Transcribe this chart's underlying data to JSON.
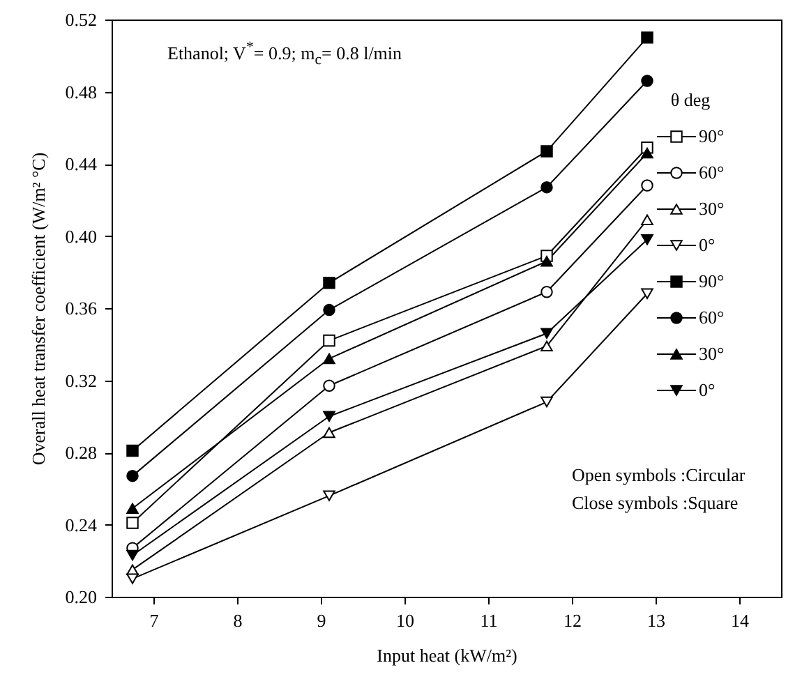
{
  "chart_data": {
    "type": "line",
    "xlabel": "Input heat (kW/m²)",
    "ylabel": "Overall heat transfer coefficient (W/m² °C)",
    "legend_title": "θ  deg",
    "annotations": [
      "Ethanol; V$^{*}$= 0.9; m$_{c}$= 0.8 l/min",
      "Open symbols  :Circular",
      "Close symbols :Square"
    ],
    "x": [
      6.75,
      9.1,
      11.7,
      12.9
    ],
    "series": [
      {
        "name": "90°",
        "color": "#000000",
        "marker": "square-open",
        "values": [
          0.241,
          0.342,
          0.389,
          0.449
        ]
      },
      {
        "name": "60°",
        "color": "#000000",
        "marker": "circle-open",
        "values": [
          0.227,
          0.317,
          0.369,
          0.428
        ]
      },
      {
        "name": "30°",
        "color": "#000000",
        "marker": "triangle-open",
        "values": [
          0.215,
          0.291,
          0.339,
          0.409
        ]
      },
      {
        "name": "0°",
        "color": "#000000",
        "marker": "triangle-down-open",
        "values": [
          0.21,
          0.256,
          0.308,
          0.368
        ]
      },
      {
        "name": "90°",
        "color": "#000000",
        "marker": "square",
        "values": [
          0.281,
          0.374,
          0.447,
          0.51
        ]
      },
      {
        "name": "60°",
        "color": "#000000",
        "marker": "circle",
        "values": [
          0.267,
          0.359,
          0.427,
          0.486
        ]
      },
      {
        "name": "30°",
        "color": "#000000",
        "marker": "triangle",
        "values": [
          0.249,
          0.332,
          0.386,
          0.446
        ]
      },
      {
        "name": "0°",
        "color": "#000000",
        "marker": "triangle-down",
        "values": [
          0.223,
          0.3,
          0.346,
          0.398
        ]
      }
    ],
    "xlim": [
      6.5,
      14.5
    ],
    "xticks": [
      7,
      8,
      9,
      10,
      11,
      12,
      13,
      14
    ],
    "ylim": [
      0.2,
      0.52
    ],
    "yticks": [
      {
        "value": 0.2,
        "label": "0.20"
      },
      {
        "value": 0.24,
        "label": "0.24"
      },
      {
        "value": 0.28,
        "label": "0.28"
      },
      {
        "value": 0.32,
        "label": "0.32"
      },
      {
        "value": 0.36,
        "label": "0.36"
      },
      {
        "value": 0.4,
        "label": "0.40"
      },
      {
        "value": 0.44,
        "label": "0.44"
      },
      {
        "value": 0.48,
        "label": "0.48"
      },
      {
        "value": 0.52,
        "label": "0.52"
      }
    ],
    "line_style": "solid",
    "grid": false,
    "legend": "top right"
  }
}
